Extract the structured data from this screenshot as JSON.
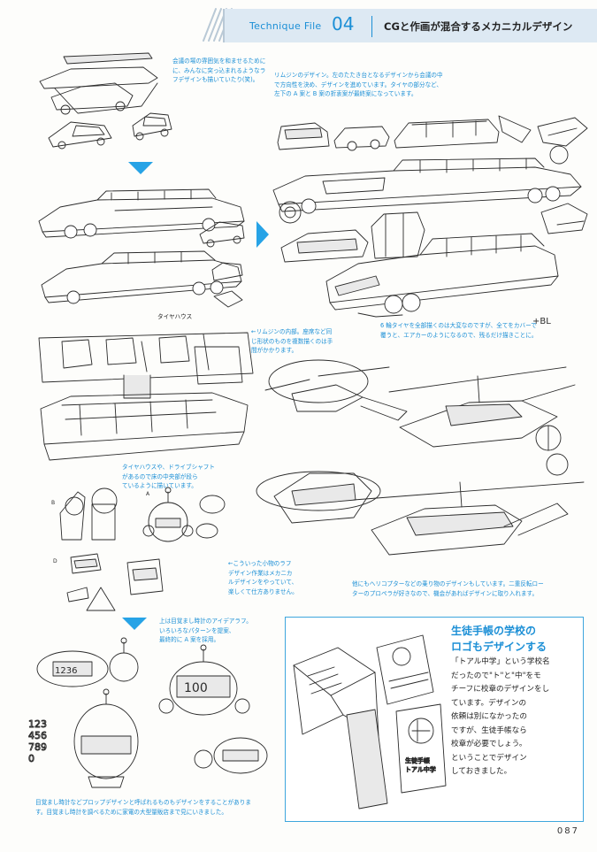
{
  "header": {
    "technique": "Technique File",
    "number": "04",
    "title": "CGと作画が混合するメカニカルデザイン"
  },
  "captions": {
    "conference_idea": "会議の場の雰囲気を和ませるために\nに、みんなに突っ込まれるようなラ\nフデザインも描いていたり(笑)。",
    "limousine_design": "リムジンのデザイン。左のたたき台となるデザインから会議の中\nで方向性を決め、デザインを進めています。タイヤの部分など、\n左下の A 案と B 案の折衷案が最終案になっています。",
    "tire_house": "タイヤハウス",
    "interior": "←リムジンの内部。座席など同\nじ形状のものを複数描くのは手\n間がかかります。",
    "six_wheel": "6 輪タイヤを全部描くのは大変なのですが、全てをカバーで\n覆うと、エアカーのようになるので、残るだけ描きことに。",
    "drive_shaft": "タイヤハウスや、ドライブシャフト\nがあるので床の中央部が段ら\nているように描いています。",
    "small_props": "←こういった小物のラフ\nデザイン作業はメカニカ\nルデザインをやっていて、\n楽しくて仕方ありません。",
    "helicopter": "他にもヘリコプターなどの乗り物のデザインもしています。二重反転ロー\nターのプロペラが好きなので、機会があればデザインに取り入れます。",
    "clock_idea": "上は目覚まし時計のアイデアラフ。\nいろいろなパターンを提案、\n最終的に A 案を採用。",
    "prop_design": "目覚まし時計などプロップデザインと呼ばれるものもデザインをすることがありま\nす。目覚まし時計を調べるために家電の大型量販店まで見にいきました。"
  },
  "sidebar": {
    "title": "生徒手帳の学校の\nロゴもデザインする",
    "body": "「トアル中学」という学校名\nだったので\"ト\"と\"中\"をモ\nチーフに校章のデザインをし\nています。デザインの\n依頼は別になかったの\nですが、生徒手帳なら\n校章が必要でしょう。\nということでデザイン\nしておきました。"
  },
  "sketch_labels": {
    "clock_a": "A",
    "clock_b": "B",
    "clock_d": "D",
    "digits_1": "1236",
    "digits_2": "100",
    "digits_col": "123\n456\n789\n0",
    "note_bl": "+BL",
    "notebook_label": "生徒手帳\nトアル中学"
  },
  "page": "087",
  "colors": {
    "accent": "#1b8fd6",
    "arrow": "#27a3e6",
    "header_bg": "#dde9f3"
  }
}
